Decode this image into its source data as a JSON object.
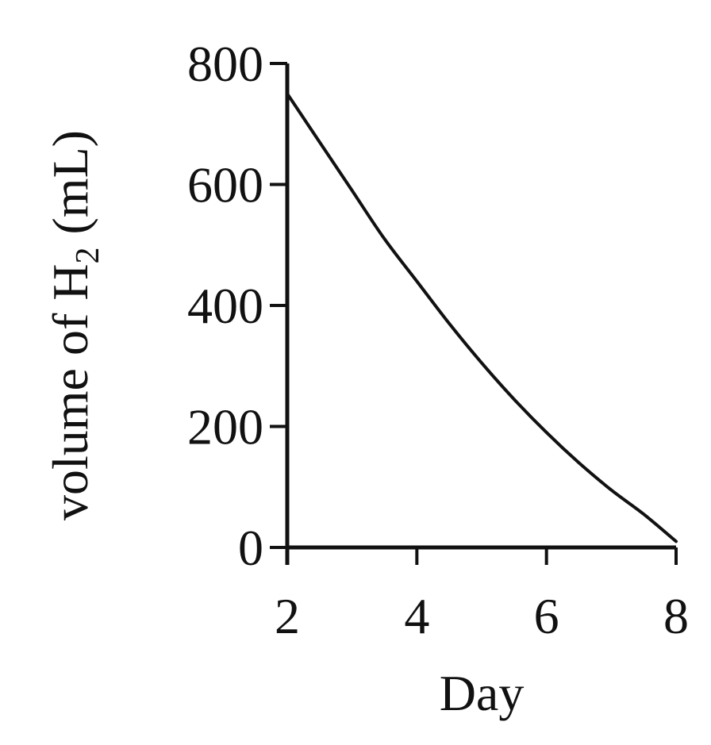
{
  "chart_data": {
    "type": "line",
    "title": "",
    "xlabel": "Day",
    "ylabel": {
      "prefix": "volume of H",
      "subscript": "2",
      "suffix": " (mL)"
    },
    "xlim": [
      2,
      8
    ],
    "ylim": [
      0,
      800
    ],
    "x_ticks": [
      2,
      4,
      6,
      8
    ],
    "y_ticks": [
      0,
      200,
      400,
      600,
      800
    ],
    "grid": false,
    "legend": "none",
    "series": [
      {
        "x": [
          2,
          2.5,
          3,
          3.5,
          4,
          4.5,
          5,
          5.5,
          6,
          6.5,
          7,
          7.5,
          8
        ],
        "values": [
          750,
          670,
          590,
          510,
          440,
          370,
          305,
          245,
          190,
          140,
          95,
          55,
          10
        ]
      }
    ],
    "colors": {
      "line": "#111111",
      "axis": "#111111"
    }
  }
}
